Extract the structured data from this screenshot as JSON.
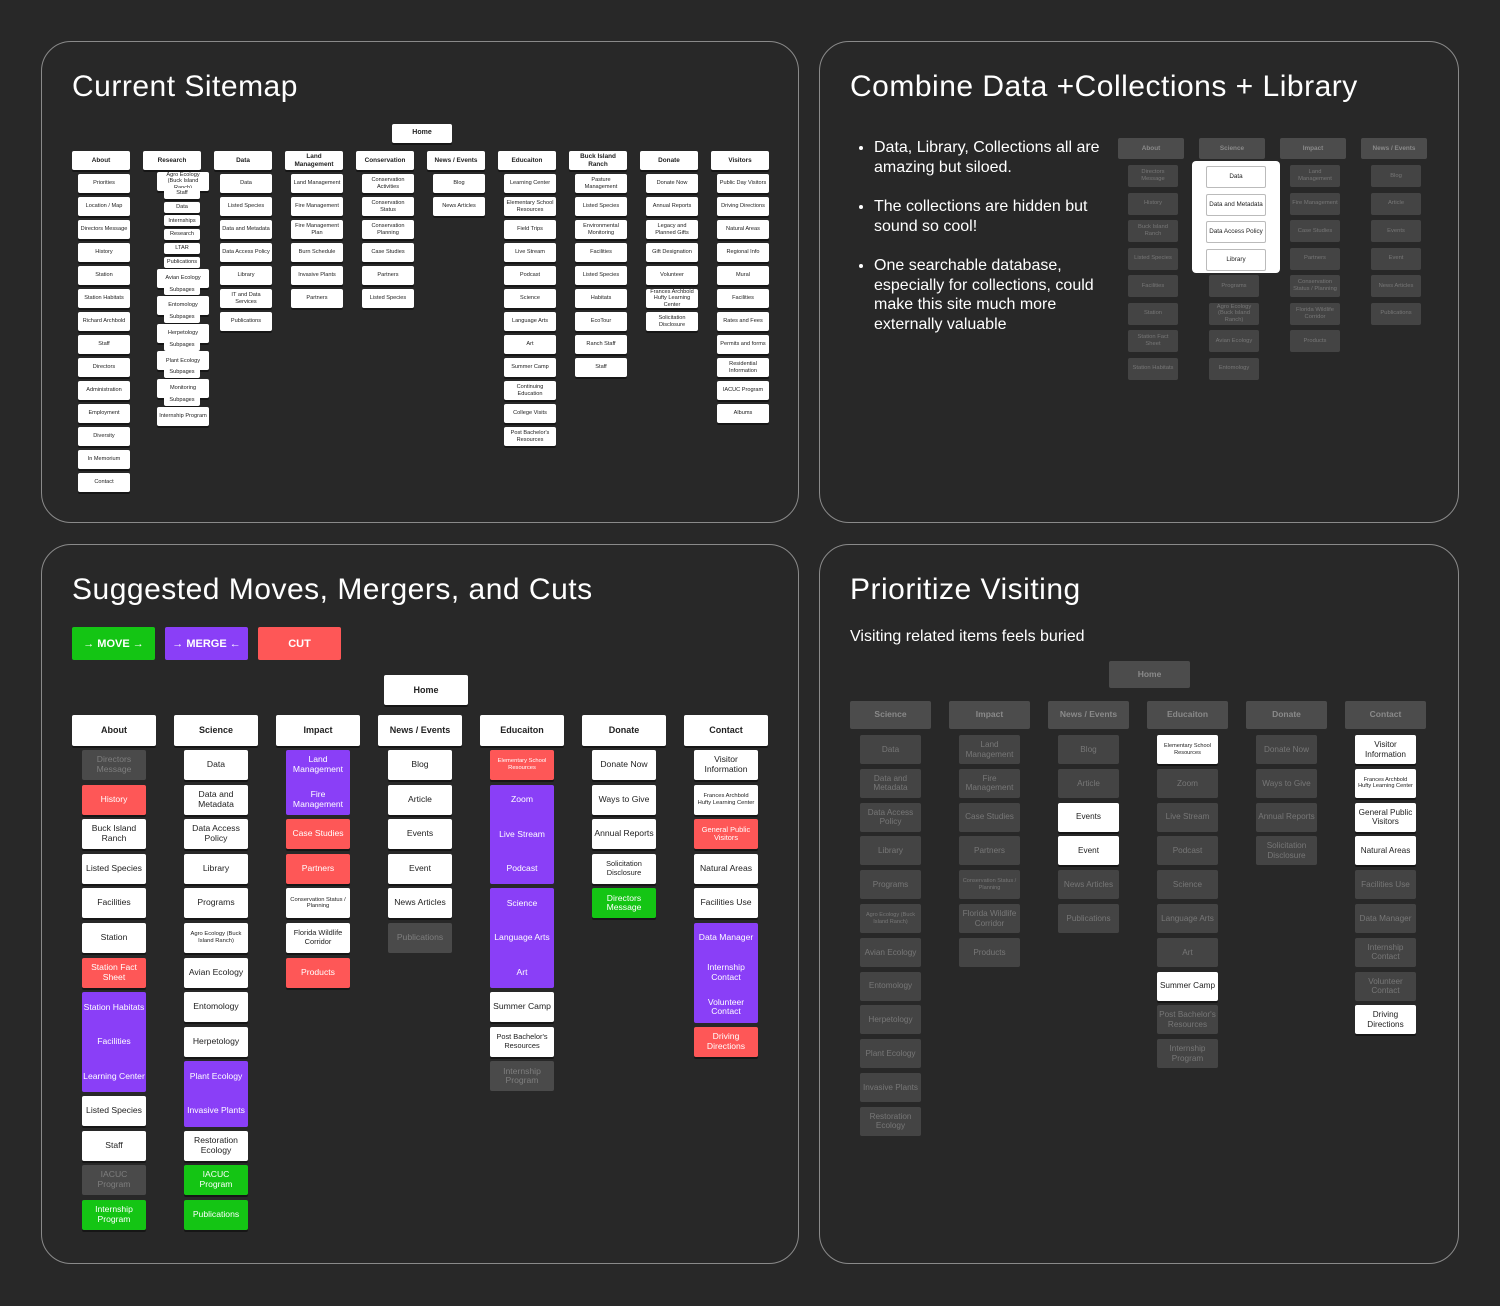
{
  "panels": {
    "current": {
      "title": "Current Sitemap"
    },
    "combine": {
      "title": "Combine Data +Collections + Library",
      "bullets": [
        "Data, Library, Collections all are amazing but siloed.",
        "The collections are hidden but sound so cool!",
        "One searchable database, especially for collections, could make this site much more externally valuable"
      ]
    },
    "suggested": {
      "title": "Suggested Moves, Mergers, and Cuts",
      "legend": {
        "move": "→ MOVE →",
        "merge": "→ MERGE ←",
        "cut": "CUT"
      }
    },
    "prioritize": {
      "title": "Prioritize Visiting",
      "subtitle": "Visiting related items feels buried"
    }
  },
  "colors": {
    "background": "#282828",
    "panel_border": "#8a8a8a",
    "red": "#fe5757",
    "purple": "#8a3ff7",
    "green": "#14c514",
    "gray": "#4a4a4a"
  },
  "sitemap": {
    "home": "Home",
    "columns": [
      {
        "header": "About",
        "items": [
          "Priorities",
          "Location / Map",
          "Directors Message",
          "History",
          "Station",
          "Station Habitats",
          "Richard Archbold",
          "Staff",
          "Directors",
          "Administration",
          "Employment",
          "Diversity",
          "In Memorium",
          "Contact"
        ]
      },
      {
        "header": "Research",
        "items": [
          "Agro Ecology (Buck Island Ranch)",
          "Staff",
          "Data",
          "Internships",
          "Research",
          "LTAR",
          "Publications",
          "Avian Ecology",
          "Subpages",
          "Entomology",
          "Subpages",
          "Herpetology",
          "Subpages",
          "Plant Ecology",
          "Subpages",
          "Monitoring",
          "Subpages",
          "Internship Program"
        ]
      },
      {
        "header": "Data",
        "items": [
          "Data",
          "Listed Species",
          "Data and Metadata",
          "Data Access Policy",
          "Library",
          "IT and Data Services",
          "Publications"
        ]
      },
      {
        "header": "Land Management",
        "items": [
          "Land Management",
          "Fire Management",
          "Fire Management Plan",
          "Burn Schedule",
          "Invasive Plants",
          "Partners"
        ]
      },
      {
        "header": "Conservation",
        "items": [
          "Conservation Activities",
          "Conservation Status",
          "Conservation Planning",
          "Case Studies",
          "Partners",
          "Listed Species"
        ]
      },
      {
        "header": "News / Events",
        "items": [
          "Blog",
          "News Articles"
        ]
      },
      {
        "header": "Educaiton",
        "items": [
          "Learning Center",
          "Elementary School Resources",
          "Field Trips",
          "Live Stream",
          "Podcast",
          "Science",
          "Language Arts",
          "Art",
          "Summer Camp",
          "Continuing Education",
          "College Visits",
          "Post Bachelor's Resources"
        ]
      },
      {
        "header": "Buck Island Ranch",
        "items": [
          "Pasture Management",
          "Listed Species",
          "Environmental Monitoring",
          "Facilities",
          "Listed Species",
          "Habitats",
          "EcoTour",
          "Ranch Staff",
          "Staff"
        ]
      },
      {
        "header": "Donate",
        "items": [
          "Donate Now",
          "Annual Reports",
          "Legacy and Planned Gifts",
          "Gift Designation",
          "Volunteer",
          "Frances Archbold Hufty Learning Center",
          "Solicitation Disclosure"
        ]
      },
      {
        "header": "Visitors",
        "items": [
          "Public Day Visitors",
          "Driving Directions",
          "Natural Areas",
          "Regional Info",
          "Mural",
          "Facilities",
          "Rates and Fees",
          "Permits and forms",
          "Residential Information",
          "IACUC Program",
          "Albums"
        ]
      }
    ]
  },
  "combine_map": {
    "columns": [
      {
        "header": "About",
        "items": [
          "Directors Message",
          "History",
          "Buck Island Ranch",
          "Listed Species",
          "Facilities",
          "Station",
          "Station Fact Sheet",
          "Station Habitats"
        ]
      },
      {
        "header": "Science",
        "items": [
          "Programs",
          "Agro Ecology (Buck Island Ranch)",
          "Avian Ecology",
          "Entomology"
        ]
      },
      {
        "header": "Impact",
        "items": [
          "Land Management",
          "Fire Management",
          "Case Studies",
          "Partners",
          "Conservation Status / Planning",
          "Florida Wildlife Corridor",
          "Products"
        ]
      },
      {
        "header": "News / Events",
        "items": [
          "Blog",
          "Article",
          "Events",
          "Event",
          "News Articles",
          "Publications"
        ]
      }
    ],
    "popup": [
      "Data",
      "Data and Metadata",
      "Data Access Policy",
      "Library"
    ]
  },
  "suggested_map": {
    "home": "Home",
    "columns": [
      {
        "header": "About",
        "items": [
          {
            "label": "Directors Message",
            "style": "gray"
          },
          {
            "label": "History",
            "style": "red"
          },
          {
            "label": "Buck Island Ranch",
            "style": "white"
          },
          {
            "label": "Listed Species",
            "style": "white"
          },
          {
            "label": "Facilities",
            "style": "white"
          },
          {
            "label": "Station",
            "style": "white"
          },
          {
            "label": "Station Fact Sheet",
            "style": "red"
          },
          {
            "labels": [
              "Station Habitats",
              "Facilities",
              "Learning Center"
            ],
            "style": "purple"
          },
          {
            "label": "Listed Species",
            "style": "white"
          },
          {
            "label": "Staff",
            "style": "white"
          },
          {
            "label": "IACUC Program",
            "style": "gray"
          },
          {
            "label": "Internship Program",
            "style": "green"
          }
        ]
      },
      {
        "header": "Science",
        "items": [
          {
            "label": "Data",
            "style": "white"
          },
          {
            "label": "Data and Metadata",
            "style": "white"
          },
          {
            "label": "Data Access Policy",
            "style": "white"
          },
          {
            "label": "Library",
            "style": "white"
          },
          {
            "label": "Programs",
            "style": "white"
          },
          {
            "label": "Agro Ecology (Buck Island Ranch)",
            "style": "white"
          },
          {
            "label": "Avian Ecology",
            "style": "white"
          },
          {
            "label": "Entomology",
            "style": "white"
          },
          {
            "label": "Herpetology",
            "style": "white"
          },
          {
            "labels": [
              "Plant Ecology",
              "Invasive Plants"
            ],
            "style": "purple"
          },
          {
            "label": "Restoration Ecology",
            "style": "white"
          },
          {
            "label": "IACUC Program",
            "style": "green"
          },
          {
            "label": "Publications",
            "style": "green"
          }
        ]
      },
      {
        "header": "Impact",
        "items": [
          {
            "labels": [
              "Land Management",
              "Fire Management"
            ],
            "style": "purple"
          },
          {
            "label": "Case Studies",
            "style": "red"
          },
          {
            "label": "Partners",
            "style": "red"
          },
          {
            "label": "Conservation Status / Planning",
            "style": "white"
          },
          {
            "label": "Florida Wildlife Corridor",
            "style": "white"
          },
          {
            "label": "Products",
            "style": "red"
          }
        ]
      },
      {
        "header": "News / Events",
        "items": [
          {
            "label": "Blog",
            "style": "white"
          },
          {
            "label": "Article",
            "style": "white"
          },
          {
            "label": "Events",
            "style": "white"
          },
          {
            "label": "Event",
            "style": "white"
          },
          {
            "label": "News Articles",
            "style": "white"
          },
          {
            "label": "Publications",
            "style": "gray"
          }
        ]
      },
      {
        "header": "Educaiton",
        "items": [
          {
            "label": "Elementary School Resources",
            "style": "red"
          },
          {
            "labels": [
              "Zoom",
              "Live Stream",
              "Podcast"
            ],
            "style": "purple"
          },
          {
            "labels": [
              "Science",
              "Language Arts",
              "Art"
            ],
            "style": "purple"
          },
          {
            "label": "Summer Camp",
            "style": "white"
          },
          {
            "label": "Post Bachelor's Resources",
            "style": "white"
          },
          {
            "label": "Internship Program",
            "style": "gray"
          }
        ]
      },
      {
        "header": "Donate",
        "items": [
          {
            "label": "Donate Now",
            "style": "white"
          },
          {
            "label": "Ways to Give",
            "style": "white"
          },
          {
            "label": "Annual Reports",
            "style": "white"
          },
          {
            "label": "Solicitation Disclosure",
            "style": "white"
          },
          {
            "label": "Directors Message",
            "style": "green"
          }
        ]
      },
      {
        "header": "Contact",
        "items": [
          {
            "label": "Visitor Information",
            "style": "white"
          },
          {
            "label": "Frances Archbold Hufty Learning Center",
            "style": "white"
          },
          {
            "label": "General Public Visitors",
            "style": "red"
          },
          {
            "label": "Natural Areas",
            "style": "white"
          },
          {
            "label": "Facilities Use",
            "style": "white"
          },
          {
            "labels": [
              "Data Manager",
              "Internship Contact",
              "Volunteer Contact"
            ],
            "style": "purple"
          },
          {
            "label": "Driving Directions",
            "style": "red"
          }
        ]
      }
    ]
  },
  "prioritize_map": {
    "home": "Home",
    "columns": [
      {
        "header": "Science",
        "items": [
          {
            "label": "Data",
            "hl": false
          },
          {
            "label": "Data and Metadata",
            "hl": false
          },
          {
            "label": "Data Access Policy",
            "hl": false
          },
          {
            "label": "Library",
            "hl": false
          },
          {
            "label": "Programs",
            "hl": false
          },
          {
            "label": "Agro Ecology (Buck Island Ranch)",
            "hl": false
          },
          {
            "label": "Avian Ecology",
            "hl": false
          },
          {
            "label": "Entomology",
            "hl": false
          },
          {
            "label": "Herpetology",
            "hl": false
          },
          {
            "label": "Plant Ecology",
            "hl": false
          },
          {
            "label": "Invasive Plants",
            "hl": false
          },
          {
            "label": "Restoration Ecology",
            "hl": false
          }
        ]
      },
      {
        "header": "Impact",
        "items": [
          {
            "label": "Land Management",
            "hl": false
          },
          {
            "label": "Fire Management",
            "hl": false
          },
          {
            "label": "Case Studies",
            "hl": false
          },
          {
            "label": "Partners",
            "hl": false
          },
          {
            "label": "Conservation Status / Planning",
            "hl": false
          },
          {
            "label": "Florida Wildlife Corridor",
            "hl": false
          },
          {
            "label": "Products",
            "hl": false
          }
        ]
      },
      {
        "header": "News / Events",
        "items": [
          {
            "label": "Blog",
            "hl": false
          },
          {
            "label": "Article",
            "hl": false
          },
          {
            "label": "Events",
            "hl": true
          },
          {
            "label": "Event",
            "hl": true
          },
          {
            "label": "News Articles",
            "hl": false
          },
          {
            "label": "Publications",
            "hl": false
          }
        ]
      },
      {
        "header": "Educaiton",
        "items": [
          {
            "label": "Elementary School Resources",
            "hl": true
          },
          {
            "label": "Zoom",
            "hl": false
          },
          {
            "label": "Live Stream",
            "hl": false
          },
          {
            "label": "Podcast",
            "hl": false
          },
          {
            "label": "Science",
            "hl": false
          },
          {
            "label": "Language Arts",
            "hl": false
          },
          {
            "label": "Art",
            "hl": false
          },
          {
            "label": "Summer Camp",
            "hl": true
          },
          {
            "label": "Post Bachelor's Resources",
            "hl": false
          },
          {
            "label": "Internship Program",
            "hl": false
          }
        ]
      },
      {
        "header": "Donate",
        "items": [
          {
            "label": "Donate Now",
            "hl": false
          },
          {
            "label": "Ways to Give",
            "hl": false
          },
          {
            "label": "Annual Reports",
            "hl": false
          },
          {
            "label": "Solicitation Disclosure",
            "hl": false
          }
        ]
      },
      {
        "header": "Contact",
        "items": [
          {
            "label": "Visitor Information",
            "hl": true
          },
          {
            "label": "Frances Archbold Hufty Learning Center",
            "hl": true
          },
          {
            "label": "General Public Visitors",
            "hl": true
          },
          {
            "label": "Natural Areas",
            "hl": true
          },
          {
            "label": "Facilities Use",
            "hl": false
          },
          {
            "label": "Data Manager",
            "hl": false
          },
          {
            "label": "Internship Contact",
            "hl": false
          },
          {
            "label": "Volunteer Contact",
            "hl": false
          },
          {
            "label": "Driving Directions",
            "hl": true
          }
        ]
      }
    ]
  }
}
